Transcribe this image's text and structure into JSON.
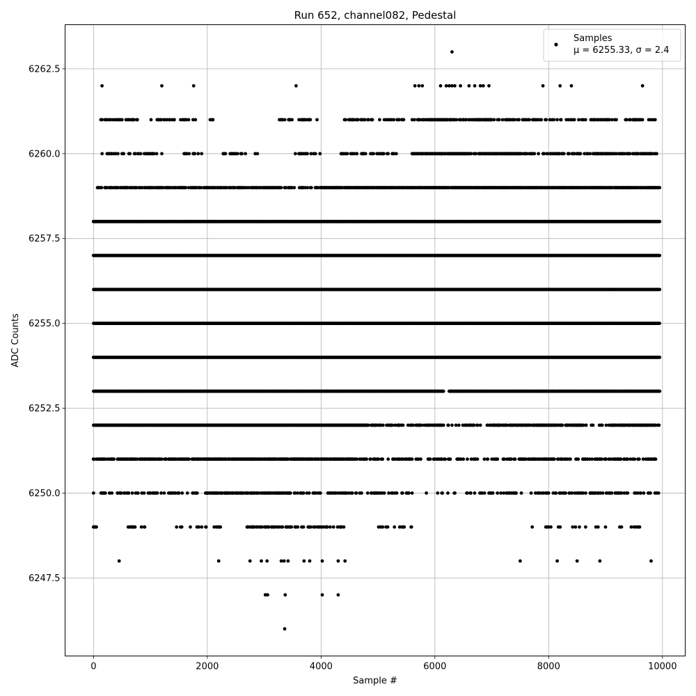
{
  "chart_data": {
    "type": "scatter",
    "title": "Run 652, channel082, Pedestal",
    "xlabel": "Sample #",
    "ylabel": "ADC Counts",
    "xlim": [
      -500,
      10400
    ],
    "ylim": [
      6245.2,
      6263.8
    ],
    "xticks": [
      0,
      2000,
      4000,
      6000,
      8000,
      10000
    ],
    "xtick_labels": [
      "0",
      "2000",
      "4000",
      "6000",
      "8000",
      "10000"
    ],
    "yticks": [
      6247.5,
      6250.0,
      6252.5,
      6255.0,
      6257.5,
      6260.0,
      6262.5
    ],
    "ytick_labels": [
      "6247.5",
      "6250.0",
      "6252.5",
      "6255.0",
      "6257.5",
      "6260.0",
      "6262.5"
    ],
    "grid": true,
    "legend_position": "top-right",
    "marker_color": "#000000",
    "series": [
      {
        "name": "Samples",
        "legend_label_line2": "μ = 6255.33, σ = 2.4",
        "mean": 6255.33,
        "sigma": 2.4,
        "n_samples": 10000,
        "levels": [
          {
            "y": 6263,
            "x": [
              6300
            ]
          },
          {
            "y": 6262,
            "x": [
              150,
              1200,
              1760,
              3560,
              5650,
              5720,
              5780,
              6100,
              6200,
              6250,
              6300,
              6350,
              6450,
              6600,
              6700,
              6800,
              6850,
              6950,
              7900,
              8200,
              8400,
              9650
            ]
          },
          {
            "y": 6248,
            "x": [
              450,
              2200,
              2750,
              2950,
              3050,
              3300,
              3350,
              3420,
              3700,
              3800,
              4020,
              4300,
              4420,
              7500,
              8150,
              8500,
              8900,
              9800
            ]
          },
          {
            "y": 6247,
            "x": [
              3020,
              3060,
              3370,
              4020,
              4300
            ]
          },
          {
            "y": 6246,
            "x": [
              3360
            ]
          }
        ],
        "density_ranges": [
          {
            "y": 6261,
            "ranges": [
              [
                130,
                800,
                0.3
              ],
              [
                1000,
                1800,
                0.25
              ],
              [
                2050,
                2150,
                0.2
              ],
              [
                3250,
                3950,
                0.3
              ],
              [
                4400,
                6100,
                0.35
              ],
              [
                6100,
                7000,
                0.6
              ],
              [
                7000,
                9900,
                0.3
              ]
            ]
          },
          {
            "y": 6260,
            "ranges": [
              [
                150,
                1200,
                0.3
              ],
              [
                1550,
                1900,
                0.3
              ],
              [
                2250,
                2900,
                0.2
              ],
              [
                3550,
                4000,
                0.3
              ],
              [
                4350,
                5100,
                0.35
              ],
              [
                5100,
                5350,
                0.2
              ],
              [
                5600,
                7500,
                0.8
              ],
              [
                7500,
                7900,
                0.3
              ],
              [
                7900,
                9900,
                0.45
              ]
            ]
          },
          {
            "y": 6259,
            "ranges": [
              [
                50,
                3300,
                0.6
              ],
              [
                3300,
                4000,
                0.35
              ],
              [
                4000,
                9950,
                0.9
              ]
            ]
          },
          {
            "y": 6258,
            "ranges": [
              [
                0,
                9950,
                1.0
              ]
            ]
          },
          {
            "y": 6257,
            "ranges": [
              [
                0,
                9950,
                1.0
              ]
            ]
          },
          {
            "y": 6256,
            "ranges": [
              [
                0,
                9950,
                1.0
              ]
            ]
          },
          {
            "y": 6255,
            "ranges": [
              [
                0,
                9950,
                1.0
              ]
            ]
          },
          {
            "y": 6254,
            "ranges": [
              [
                0,
                9950,
                1.0
              ]
            ]
          },
          {
            "y": 6253,
            "ranges": [
              [
                0,
                6150,
                1.0
              ],
              [
                6250,
                9950,
                0.95
              ]
            ]
          },
          {
            "y": 6252,
            "ranges": [
              [
                0,
                4800,
                1.0
              ],
              [
                4800,
                6100,
                0.55
              ],
              [
                6100,
                7000,
                0.3
              ],
              [
                7000,
                8600,
                0.8
              ],
              [
                8600,
                9100,
                0.3
              ],
              [
                9100,
                9950,
                0.8
              ]
            ]
          },
          {
            "y": 6251,
            "ranges": [
              [
                0,
                2000,
                0.6
              ],
              [
                2000,
                4500,
                0.8
              ],
              [
                4500,
                5600,
                0.4
              ],
              [
                5600,
                6700,
                0.2
              ],
              [
                6700,
                7200,
                0.3
              ],
              [
                7200,
                8100,
                0.6
              ],
              [
                8100,
                9950,
                0.35
              ]
            ]
          },
          {
            "y": 6250,
            "ranges": [
              [
                0,
                1500,
                0.35
              ],
              [
                1500,
                2000,
                0.2
              ],
              [
                2000,
                3450,
                0.6
              ],
              [
                3450,
                4500,
                0.35
              ],
              [
                4500,
                5600,
                0.3
              ],
              [
                5800,
                6800,
                0.15
              ],
              [
                6800,
                8200,
                0.25
              ],
              [
                8200,
                9950,
                0.3
              ]
            ]
          },
          {
            "y": 6249,
            "ranges": [
              [
                0,
                50,
                1.0
              ],
              [
                500,
                900,
                0.25
              ],
              [
                1450,
                2250,
                0.15
              ],
              [
                2700,
                3500,
                0.4
              ],
              [
                3500,
                4450,
                0.3
              ],
              [
                5000,
                5600,
                0.2
              ],
              [
                7700,
                9600,
                0.08
              ]
            ]
          }
        ]
      }
    ]
  }
}
